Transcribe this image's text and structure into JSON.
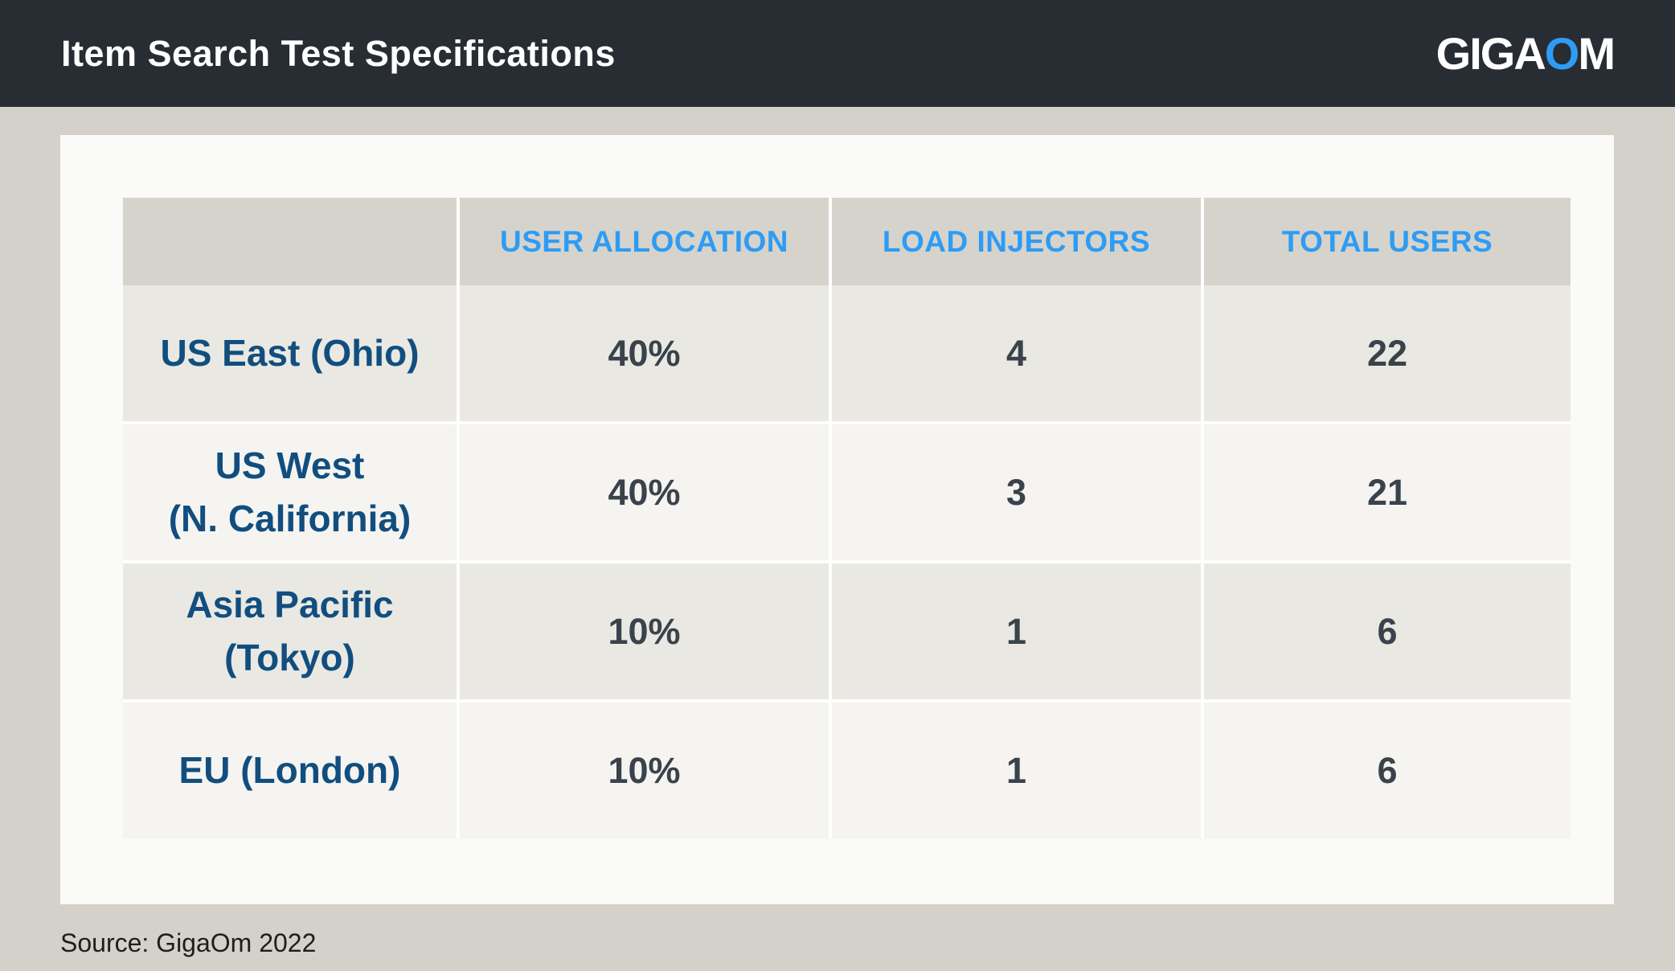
{
  "header": {
    "title": "Item Search Test Specifications",
    "logo": {
      "giga": "GIGA",
      "o": "O",
      "m": "M"
    }
  },
  "table": {
    "columns": [
      "USER ALLOCATION",
      "LOAD INJECTORS",
      "TOTAL USERS"
    ],
    "rows": [
      {
        "region": "US East (Ohio)",
        "allocation": "40%",
        "injectors": "4",
        "users": "22"
      },
      {
        "region": "US West\n(N. California)",
        "allocation": "40%",
        "injectors": "3",
        "users": "21"
      },
      {
        "region": "Asia Pacific\n(Tokyo)",
        "allocation": "10%",
        "injectors": "1",
        "users": "6"
      },
      {
        "region": "EU (London)",
        "allocation": "10%",
        "injectors": "1",
        "users": "6"
      }
    ]
  },
  "footer": {
    "source": "Source: GigaOm 2022"
  },
  "colors": {
    "topbar": "#282D34",
    "accent_blue": "#2E9CF4",
    "navy": "#114E7F",
    "value_text": "#3A424B",
    "page_background": "#D3D1C9",
    "panel_background": "#FAFAF8",
    "header_cell": "#D5D3CB",
    "row_odd": "#E9E8E2",
    "row_even": "#F5F4F1"
  },
  "chart_data": {
    "type": "table",
    "title": "Item Search Test Specifications",
    "columns": [
      "",
      "USER ALLOCATION",
      "LOAD INJECTORS",
      "TOTAL USERS"
    ],
    "rows": [
      [
        "US East (Ohio)",
        "40%",
        4,
        22
      ],
      [
        "US West (N. California)",
        "40%",
        3,
        21
      ],
      [
        "Asia Pacific (Tokyo)",
        "10%",
        1,
        6
      ],
      [
        "EU (London)",
        "10%",
        1,
        6
      ]
    ],
    "source": "Source: GigaOm 2022"
  }
}
